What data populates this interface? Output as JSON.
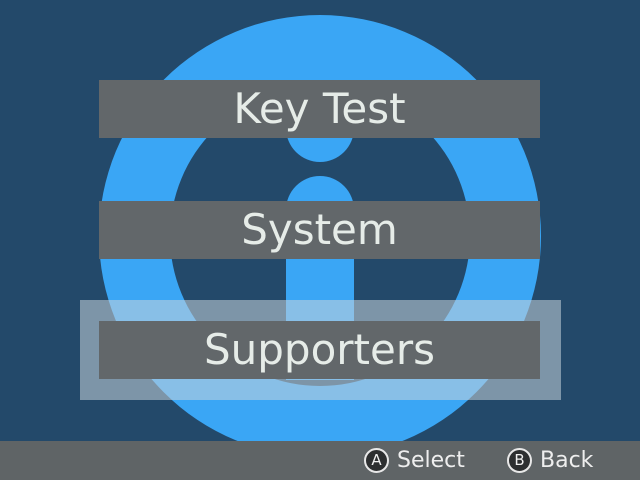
{
  "theme": {
    "background": "#23496a",
    "logo_color": "#3aa6f5",
    "menu_item_color": "#62676a",
    "footer_color": "#5f6466"
  },
  "background_logo": {
    "icon": "info-icon"
  },
  "menu": {
    "items": [
      {
        "label": "Key Test"
      },
      {
        "label": "System"
      },
      {
        "label": "Supporters"
      }
    ],
    "selected_index": 2
  },
  "footer": {
    "select": {
      "button": "A",
      "label": "Select"
    },
    "back": {
      "button": "B",
      "label": "Back"
    }
  }
}
